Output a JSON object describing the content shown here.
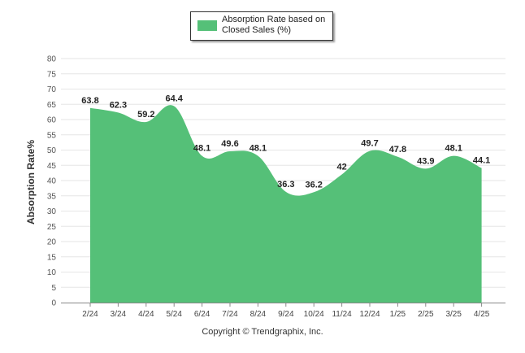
{
  "chart_data": {
    "type": "area",
    "categories": [
      "2/24",
      "3/24",
      "4/24",
      "5/24",
      "6/24",
      "7/24",
      "8/24",
      "9/24",
      "10/24",
      "11/24",
      "12/24",
      "1/25",
      "2/25",
      "3/25",
      "4/25"
    ],
    "series": [
      {
        "name": "Absorption Rate based on Closed Sales (%)",
        "values": [
          63.8,
          62.3,
          59.2,
          64.4,
          48.1,
          49.6,
          48.1,
          36.3,
          36.2,
          42,
          49.7,
          47.8,
          43.9,
          48.1,
          44.1
        ],
        "color": "#55c078"
      }
    ],
    "ylabel": "Absorption Rate%",
    "ylim": [
      0,
      80
    ],
    "yticks": [
      0,
      5,
      10,
      15,
      20,
      25,
      30,
      35,
      40,
      45,
      50,
      55,
      60,
      65,
      70,
      75,
      80
    ],
    "grid": true,
    "legend_position": "top-center"
  },
  "footer": "Copyright © Trendgraphix, Inc."
}
